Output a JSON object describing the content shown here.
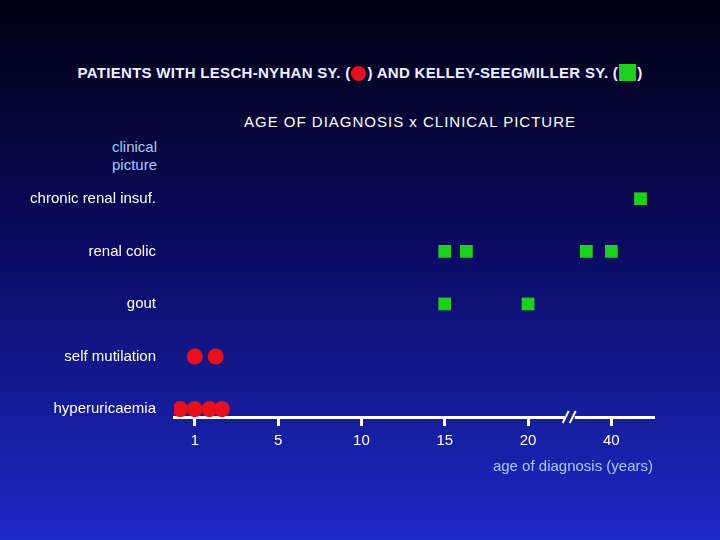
{
  "chart_data": {
    "type": "scatter",
    "title": "PATIENTS WITH LESCH-NYHAN SY. ( ) AND KELLEY-SEEGMILLER SY. ( )",
    "subtitle": "AGE OF DIAGNOSIS x CLINICAL PICTURE",
    "x_label": "age of diagnosis (years)",
    "y_label": "clinical picture",
    "categories": [
      "hyperuricaemia",
      "self mutilation",
      "gout",
      "renal colic",
      "chronic renal insuf."
    ],
    "xlim": [
      0,
      50
    ],
    "xticks": [
      1,
      5,
      10,
      15,
      20,
      40
    ],
    "grid": false,
    "series": [
      {
        "color": "#e8101c",
        "marker": "circle",
        "x": [
          0.3,
          1,
          1.7,
          2.3,
          1,
          2
        ],
        "values": [
          "hyperuricaemia",
          "hyperuricaemia",
          "hyperuricaemia",
          "hyperuricaemia",
          "self mutilation",
          "self mutilation"
        ]
      },
      {
        "color": "#19d219",
        "marker": "square",
        "x": [
          15,
          20,
          15,
          16.3,
          34,
          40,
          47
        ],
        "values": [
          "gout",
          "gout",
          "renal colic",
          "renal colic",
          "renal colic",
          "renal colic",
          "chronic renal insuf."
        ]
      }
    ]
  }
}
